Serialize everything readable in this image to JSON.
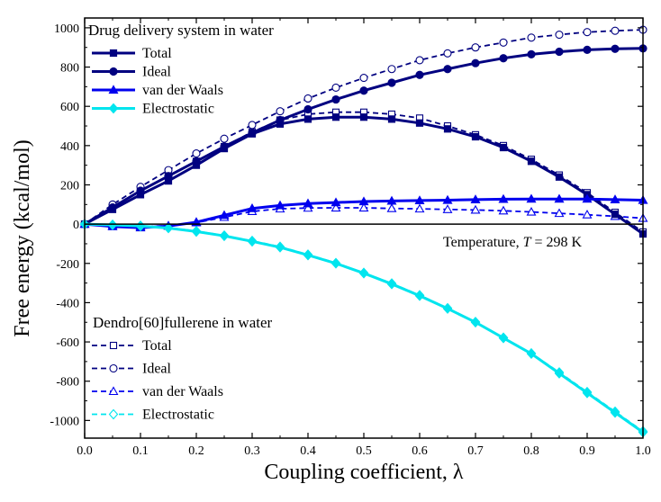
{
  "chart_data": {
    "type": "line",
    "xlabel": "Coupling coefficient, λ",
    "ylabel": "Free energy (kcal/mol)",
    "xlim": [
      0.0,
      1.0
    ],
    "ylim": [
      -1090,
      1050
    ],
    "x_ticks": [
      0.0,
      0.1,
      0.2,
      0.3,
      0.4,
      0.5,
      0.6,
      0.7,
      0.8,
      0.9,
      1.0
    ],
    "x_tick_labels": [
      "0.0",
      "0.1",
      "0.2",
      "0.3",
      "0.4",
      "0.5",
      "0.6",
      "0.7",
      "0.8",
      "0.9",
      "1.0"
    ],
    "y_ticks": [
      -1000,
      -800,
      -600,
      -400,
      -200,
      0,
      200,
      400,
      600,
      800,
      1000
    ],
    "y_tick_labels": [
      "-1000",
      "-800",
      "-600",
      "-400",
      "-200",
      "0",
      "200",
      "400",
      "600",
      "800",
      "1000"
    ],
    "zero_line": true,
    "grid": false,
    "annotation": {
      "prefix": "Temperature, ",
      "symbol": "T",
      "suffix": " = 298 K"
    },
    "legends": [
      {
        "title": "Drug delivery system in water",
        "placement": "top-left",
        "series_indices": [
          0,
          1,
          2,
          3
        ]
      },
      {
        "title": "Dendro[60]fullerene in water",
        "placement": "bottom-left",
        "series_indices": [
          4,
          5,
          6,
          7
        ]
      }
    ],
    "x": [
      0.0,
      0.05,
      0.1,
      0.15,
      0.2,
      0.25,
      0.3,
      0.35,
      0.4,
      0.45,
      0.5,
      0.55,
      0.6,
      0.65,
      0.7,
      0.75,
      0.8,
      0.85,
      0.9,
      0.95,
      1.0
    ],
    "series": [
      {
        "name": "Total",
        "color": "#000080",
        "line": "solid",
        "marker": "square",
        "filled": true,
        "values": [
          0,
          75,
          150,
          220,
          300,
          385,
          460,
          510,
          535,
          545,
          545,
          535,
          515,
          485,
          445,
          390,
          320,
          240,
          150,
          50,
          -50
        ]
      },
      {
        "name": "Ideal",
        "color": "#000080",
        "line": "solid",
        "marker": "circle",
        "filled": true,
        "values": [
          0,
          85,
          170,
          245,
          320,
          395,
          465,
          530,
          585,
          635,
          680,
          720,
          760,
          790,
          820,
          845,
          865,
          878,
          888,
          893,
          895
        ]
      },
      {
        "name": "van der Waals",
        "color": "#0000ee",
        "line": "solid",
        "marker": "triangle",
        "filled": true,
        "values": [
          0,
          -12,
          -18,
          -10,
          10,
          45,
          80,
          95,
          105,
          110,
          115,
          118,
          120,
          122,
          125,
          127,
          128,
          128,
          128,
          125,
          122
        ]
      },
      {
        "name": "Electrostatic",
        "color": "#00e5ee",
        "line": "solid",
        "marker": "diamond",
        "filled": true,
        "values": [
          0,
          -4,
          -10,
          -20,
          -38,
          -60,
          -88,
          -118,
          -158,
          -200,
          -250,
          -305,
          -365,
          -430,
          -500,
          -580,
          -660,
          -760,
          -860,
          -960,
          -1060
        ]
      },
      {
        "name": "Total",
        "color": "#000080",
        "line": "dash",
        "marker": "square",
        "filled": false,
        "values": [
          0,
          90,
          170,
          245,
          320,
          395,
          470,
          530,
          560,
          570,
          570,
          560,
          540,
          500,
          455,
          400,
          330,
          250,
          160,
          60,
          -40
        ]
      },
      {
        "name": "Ideal",
        "color": "#000080",
        "line": "dash",
        "marker": "circle",
        "filled": false,
        "values": [
          0,
          100,
          190,
          275,
          360,
          435,
          505,
          575,
          640,
          695,
          745,
          790,
          835,
          870,
          900,
          925,
          950,
          965,
          978,
          985,
          990
        ]
      },
      {
        "name": "van der Waals",
        "color": "#0000ee",
        "line": "dash",
        "marker": "triangle",
        "filled": false,
        "values": [
          0,
          -5,
          -12,
          -8,
          8,
          35,
          65,
          78,
          82,
          83,
          83,
          80,
          78,
          75,
          72,
          68,
          62,
          55,
          48,
          40,
          30
        ]
      },
      {
        "name": "Electrostatic",
        "color": "#00e5ee",
        "line": "dash",
        "marker": "diamond",
        "filled": false,
        "values": [
          0,
          -3,
          -8,
          -18,
          -35,
          -58,
          -85,
          -115,
          -155,
          -198,
          -248,
          -302,
          -362,
          -428,
          -498,
          -578,
          -658,
          -755,
          -855,
          -955,
          -1055
        ]
      }
    ]
  }
}
